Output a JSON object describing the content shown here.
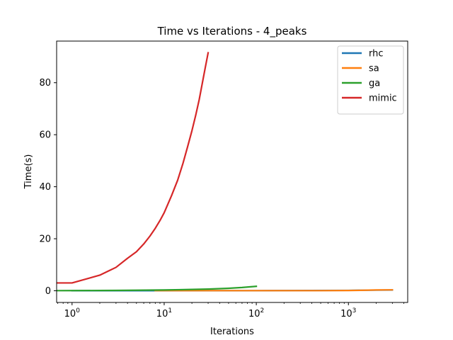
{
  "chart_data": {
    "type": "line",
    "title": "Time vs Iterations - 4_peaks",
    "xlabel": "Iterations",
    "ylabel": "Time(s)",
    "xscale": "log",
    "xlim": [
      0.68,
      4400
    ],
    "ylim": [
      -4.5,
      96
    ],
    "x_ticks": [
      {
        "value": 1,
        "label": "10",
        "exp": "0"
      },
      {
        "value": 10,
        "label": "10",
        "exp": "1"
      },
      {
        "value": 100,
        "label": "10",
        "exp": "2"
      },
      {
        "value": 1000,
        "label": "10",
        "exp": "3"
      }
    ],
    "y_ticks": [
      {
        "value": 0,
        "label": "0"
      },
      {
        "value": 20,
        "label": "20"
      },
      {
        "value": 40,
        "label": "40"
      },
      {
        "value": 60,
        "label": "60"
      },
      {
        "value": 80,
        "label": "80"
      }
    ],
    "grid": false,
    "legend_position": "top-right",
    "series": [
      {
        "name": "rhc",
        "color": "#1f77b4",
        "x": [
          1,
          10,
          100,
          1000,
          3000
        ],
        "y": [
          0.01,
          0.02,
          0.05,
          0.15,
          0.3
        ]
      },
      {
        "name": "sa",
        "color": "#ff7f0e",
        "x": [
          8,
          20,
          50,
          100,
          200,
          500,
          1000,
          1500,
          2000,
          3000
        ],
        "y": [
          0.05,
          0.05,
          0.05,
          0.05,
          0.05,
          0.05,
          0.1,
          0.2,
          0.3,
          0.35
        ]
      },
      {
        "name": "ga",
        "color": "#2ca02c",
        "x": [
          0.68,
          1,
          2,
          3,
          5,
          10,
          20,
          30,
          50,
          70,
          100
        ],
        "y": [
          0.05,
          0.06,
          0.1,
          0.13,
          0.2,
          0.3,
          0.5,
          0.65,
          0.95,
          1.25,
          1.7
        ]
      },
      {
        "name": "mimic",
        "color": "#d62728",
        "x": [
          0.68,
          1,
          2,
          3,
          4,
          5,
          6,
          7,
          8,
          9,
          10,
          12,
          14,
          16,
          18,
          20,
          22,
          24,
          26,
          28,
          30
        ],
        "y": [
          3,
          3,
          6,
          9,
          12.5,
          15,
          18,
          21,
          24,
          27,
          30,
          36.5,
          42.5,
          49,
          55.5,
          61.5,
          67.5,
          73.5,
          80,
          86,
          91.5
        ]
      }
    ]
  }
}
